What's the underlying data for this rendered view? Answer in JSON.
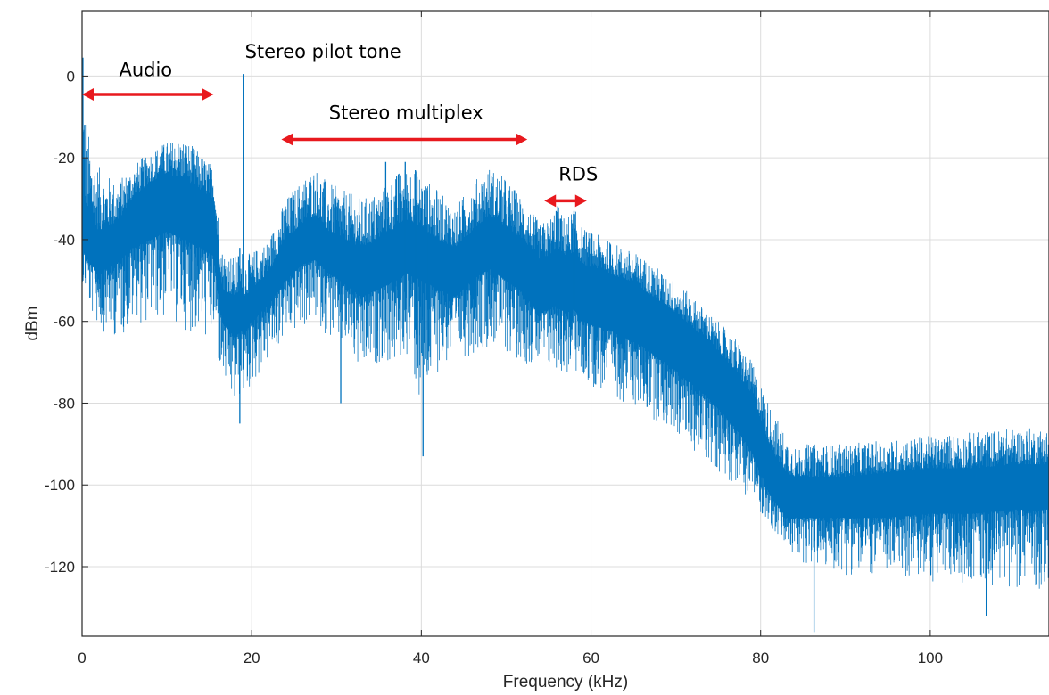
{
  "chart_data": {
    "type": "line",
    "xlabel": "Frequency (kHz)",
    "ylabel": "dBm",
    "xlim": [
      0,
      114
    ],
    "ylim": [
      -137,
      16
    ],
    "xticks": [
      0,
      20,
      40,
      60,
      80,
      100
    ],
    "yticks": [
      0,
      -20,
      -40,
      -60,
      -80,
      -100,
      -120
    ],
    "grid": true,
    "series_color": "#0072bd",
    "annotation_color": "#e8191e",
    "series": [
      {
        "envelope": {
          "x": [
            0,
            0.5,
            1,
            2,
            4,
            6,
            8,
            10,
            12,
            14,
            15.5,
            16.5,
            18,
            18.8,
            19.2,
            20,
            22,
            24,
            26,
            27.5,
            29,
            31,
            33,
            35,
            37,
            38.5,
            40,
            42,
            44,
            46,
            48,
            50,
            52,
            54,
            55,
            56,
            57,
            58,
            59,
            62,
            66,
            70,
            74,
            77,
            79,
            80,
            81,
            82,
            83,
            84,
            86,
            90,
            95,
            100,
            105,
            110,
            114
          ],
          "upper": [
            4,
            -10,
            -17,
            -22,
            -26,
            -22,
            -18,
            -16,
            -15,
            -19,
            -22,
            -42,
            -44,
            -42,
            -44,
            -43,
            -40,
            -30,
            -25,
            -22,
            -26,
            -28,
            -30,
            -28,
            -24,
            -21,
            -24,
            -28,
            -32,
            -26,
            -22,
            -25,
            -30,
            -36,
            -35,
            -31,
            -35,
            -32,
            -37,
            -40,
            -44,
            -50,
            -58,
            -64,
            -70,
            -75,
            -80,
            -84,
            -88,
            -90,
            -90,
            -90,
            -89,
            -88,
            -87,
            -86,
            -86
          ],
          "lower": [
            -50,
            -55,
            -58,
            -62,
            -64,
            -62,
            -60,
            -60,
            -62,
            -64,
            -66,
            -75,
            -82,
            -78,
            -80,
            -76,
            -70,
            -64,
            -62,
            -60,
            -64,
            -68,
            -75,
            -70,
            -72,
            -68,
            -85,
            -72,
            -70,
            -68,
            -66,
            -68,
            -70,
            -72,
            -73,
            -72,
            -74,
            -73,
            -75,
            -78,
            -82,
            -88,
            -95,
            -100,
            -104,
            -107,
            -110,
            -113,
            -116,
            -118,
            -120,
            -122,
            -122,
            -124,
            -124,
            -125,
            -126
          ],
          "core_upper": [
            -30,
            -32,
            -34,
            -38,
            -36,
            -30,
            -26,
            -24,
            -25,
            -28,
            -30,
            -52,
            -54,
            -53,
            -54,
            -52,
            -48,
            -40,
            -36,
            -34,
            -38,
            -40,
            -42,
            -40,
            -37,
            -35,
            -37,
            -40,
            -42,
            -38,
            -34,
            -37,
            -40,
            -45,
            -44,
            -42,
            -44,
            -43,
            -46,
            -48,
            -52,
            -58,
            -65,
            -72,
            -78,
            -84,
            -90,
            -94,
            -97,
            -98,
            -98,
            -98,
            -97,
            -96,
            -96,
            -95,
            -95
          ],
          "core_lower": [
            -42,
            -44,
            -46,
            -48,
            -46,
            -42,
            -40,
            -38,
            -40,
            -42,
            -44,
            -60,
            -64,
            -62,
            -63,
            -60,
            -56,
            -50,
            -46,
            -45,
            -48,
            -51,
            -54,
            -52,
            -50,
            -48,
            -50,
            -52,
            -54,
            -50,
            -47,
            -50,
            -53,
            -58,
            -57,
            -56,
            -58,
            -57,
            -60,
            -62,
            -66,
            -72,
            -79,
            -86,
            -92,
            -97,
            -102,
            -105,
            -108,
            -108,
            -108,
            -108,
            -108,
            -107,
            -107,
            -106,
            -106
          ]
        }
      }
    ],
    "spikes": [
      {
        "x": 19,
        "peak": 0.5,
        "base": -55
      },
      {
        "x": 0.1,
        "peak": 4.5,
        "base": -50
      },
      {
        "x": 18.6,
        "peak": -42,
        "base": -85
      },
      {
        "x": 40.2,
        "peak": -50,
        "base": -93
      },
      {
        "x": 30.5,
        "peak": -50,
        "base": -80
      },
      {
        "x": 86.3,
        "peak": -95,
        "base": -136
      },
      {
        "x": 106.6,
        "peak": -96,
        "base": -132
      },
      {
        "x": 35.8,
        "peak": -21,
        "base": -60
      },
      {
        "x": 38.1,
        "peak": -21,
        "base": -60
      },
      {
        "x": 39.3,
        "peak": -23,
        "base": -62
      },
      {
        "x": 37.3,
        "peak": -24,
        "base": -62
      },
      {
        "x": 40.7,
        "peak": -28,
        "base": -62
      },
      {
        "x": 55.9,
        "peak": -33,
        "base": -58
      },
      {
        "x": 58.0,
        "peak": -33,
        "base": -58
      }
    ],
    "annotations": [
      {
        "text": "Audio",
        "arrow": [
          0,
          15.5
        ],
        "arrow_y": -4.5,
        "text_x": 7.5,
        "text_y": 0
      },
      {
        "text": "Stereo pilot tone",
        "text_x": 19.2,
        "text_y": 4.5
      },
      {
        "text": "Stereo multiplex",
        "arrow": [
          23.5,
          52.5
        ],
        "arrow_y": -15.5,
        "text_x": 38.2,
        "text_y": -10.5
      },
      {
        "text": "RDS",
        "arrow": [
          54.5,
          59.5
        ],
        "arrow_y": -30.5,
        "text_x": 58.5,
        "text_y": -25.5
      }
    ]
  }
}
